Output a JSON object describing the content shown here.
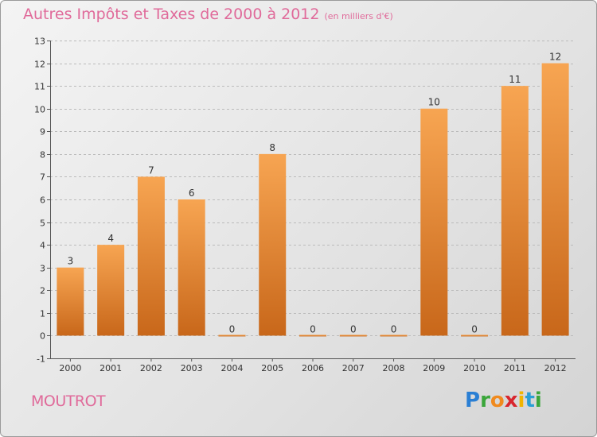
{
  "title": "Autres Impôts et Taxes de 2000 à 2012",
  "subtitle": "(en milliers d'€)",
  "commune": "MOUTROT",
  "logo": {
    "letters": [
      "P",
      "r",
      "o",
      "x",
      "i",
      "t",
      "i"
    ],
    "colors": [
      "#2a7fd4",
      "#3aa63a",
      "#f08a1e",
      "#d8262e",
      "#f0b400",
      "#2a9fd4",
      "#3aa63a"
    ]
  },
  "colors": {
    "bar_light": "#f7a552",
    "bar_dark": "#c8671a",
    "title": "#e06a9a",
    "grid": "#bbbbbb"
  },
  "chart_data": {
    "type": "bar",
    "categories": [
      "2000",
      "2001",
      "2002",
      "2003",
      "2004",
      "2005",
      "2006",
      "2007",
      "2008",
      "2009",
      "2010",
      "2011",
      "2012"
    ],
    "values": [
      3,
      4,
      7,
      6,
      0,
      8,
      0,
      0,
      0,
      10,
      0,
      11,
      12
    ],
    "data_labels": [
      "3",
      "4",
      "7",
      "6",
      "0",
      "8",
      "0",
      "0",
      "0",
      "10",
      "0",
      "11",
      "12"
    ],
    "yticks": [
      "-1",
      "0",
      "1",
      "2",
      "3",
      "4",
      "5",
      "6",
      "7",
      "8",
      "9",
      "10",
      "11",
      "12",
      "13"
    ],
    "ylim": [
      -1,
      13
    ],
    "grid": true,
    "legend": "none"
  }
}
